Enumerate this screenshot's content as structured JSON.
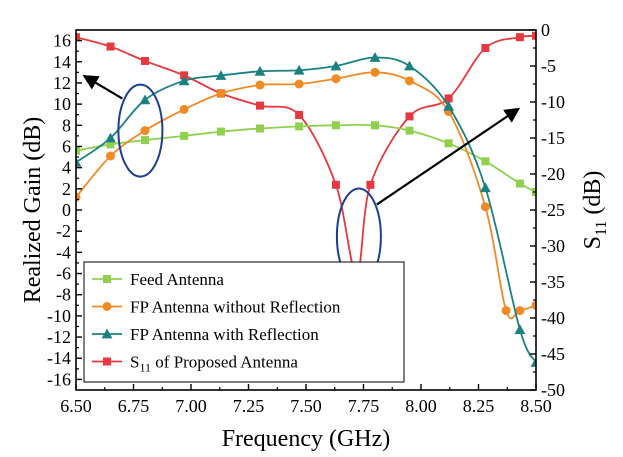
{
  "chart_data": {
    "type": "line",
    "xlabel": "Frequency (GHz)",
    "ylabel_left": "Realized Gain (dB)",
    "ylabel_right_main": "S",
    "ylabel_right_sub": "11",
    "ylabel_right_tail": " (dB)",
    "xlim": [
      6.5,
      8.5
    ],
    "ylim_left": [
      -17,
      17
    ],
    "ylim_right": [
      -50,
      0
    ],
    "x_ticks": [
      "6.50",
      "6.75",
      "7.00",
      "7.25",
      "7.50",
      "7.75",
      "8.00",
      "8.25",
      "8.50"
    ],
    "y_left_ticks": [
      "16",
      "14",
      "12",
      "10",
      "8",
      "6",
      "4",
      "2",
      "0",
      "-2",
      "-4",
      "-6",
      "-8",
      "-10",
      "-12",
      "-14",
      "-16"
    ],
    "y_right_ticks": [
      "0",
      "-5",
      "-10",
      "-15",
      "-20",
      "-25",
      "-30",
      "-35",
      "-40",
      "-45",
      "-50"
    ],
    "legend_placement": "bottom-left",
    "series": [
      {
        "name": "Feed Antenna",
        "axis": "left",
        "color": "#8fd14f",
        "marker": "square",
        "x": [
          6.5,
          6.65,
          6.8,
          6.97,
          7.13,
          7.3,
          7.47,
          7.63,
          7.8,
          7.95,
          8.12,
          8.28,
          8.43,
          8.5
        ],
        "values": [
          5.6,
          6.2,
          6.6,
          7.0,
          7.4,
          7.7,
          7.9,
          8.0,
          8.0,
          7.5,
          6.3,
          4.6,
          2.5,
          1.7
        ]
      },
      {
        "name": "FP Antenna without Reflection",
        "axis": "left",
        "color": "#f08a24",
        "marker": "circle",
        "x": [
          6.5,
          6.65,
          6.8,
          6.97,
          7.13,
          7.3,
          7.47,
          7.63,
          7.8,
          7.95,
          8.12,
          8.28,
          8.37,
          8.43,
          8.5
        ],
        "values": [
          1.2,
          5.1,
          7.5,
          9.5,
          11.0,
          11.8,
          11.9,
          12.4,
          13.0,
          12.2,
          9.3,
          0.3,
          -9.5,
          -9.5,
          -9.0
        ]
      },
      {
        "name": "FP Antenna with Reflection",
        "axis": "left",
        "color": "#1a8080",
        "marker": "triangle",
        "x": [
          6.5,
          6.65,
          6.8,
          6.97,
          7.13,
          7.3,
          7.47,
          7.63,
          7.8,
          7.95,
          8.12,
          8.28,
          8.43,
          8.5
        ],
        "values": [
          4.5,
          6.8,
          10.4,
          12.2,
          12.7,
          13.1,
          13.2,
          13.6,
          14.4,
          13.6,
          9.8,
          2.1,
          -11.3,
          -14.4
        ]
      },
      {
        "name_main": "S",
        "name_sub": "11",
        "name_tail": " of Proposed Antenna",
        "axis": "right",
        "color": "#e8383f",
        "marker": "square",
        "x": [
          6.5,
          6.65,
          6.8,
          6.97,
          7.13,
          7.3,
          7.47,
          7.63,
          7.72,
          7.78,
          7.95,
          8.12,
          8.28,
          8.43,
          8.5
        ],
        "values": [
          -1.0,
          -2.3,
          -4.3,
          -6.3,
          -8.8,
          -10.5,
          -11.8,
          -21.5,
          -34.0,
          -21.5,
          -12.0,
          -9.5,
          -2.5,
          -1.0,
          -0.8
        ]
      }
    ]
  }
}
